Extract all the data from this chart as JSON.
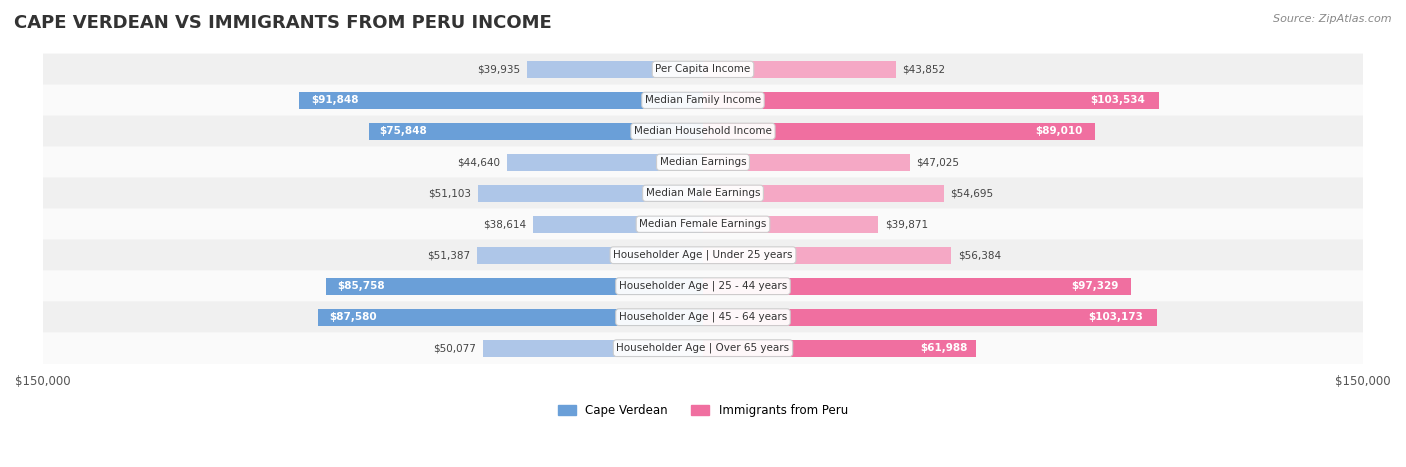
{
  "title": "CAPE VERDEAN VS IMMIGRANTS FROM PERU INCOME",
  "source": "Source: ZipAtlas.com",
  "categories": [
    "Per Capita Income",
    "Median Family Income",
    "Median Household Income",
    "Median Earnings",
    "Median Male Earnings",
    "Median Female Earnings",
    "Householder Age | Under 25 years",
    "Householder Age | 25 - 44 years",
    "Householder Age | 45 - 64 years",
    "Householder Age | Over 65 years"
  ],
  "cape_verdean": [
    39935,
    91848,
    75848,
    44640,
    51103,
    38614,
    51387,
    85758,
    87580,
    50077
  ],
  "peru": [
    43852,
    103534,
    89010,
    47025,
    54695,
    39871,
    56384,
    97329,
    103173,
    61988
  ],
  "cape_verdean_labels": [
    "$39,935",
    "$91,848",
    "$75,848",
    "$44,640",
    "$51,103",
    "$38,614",
    "$51,387",
    "$85,758",
    "$87,580",
    "$50,077"
  ],
  "peru_labels": [
    "$43,852",
    "$103,534",
    "$89,010",
    "$47,025",
    "$54,695",
    "$39,871",
    "$56,384",
    "$97,329",
    "$103,173",
    "$61,988"
  ],
  "max_value": 150000,
  "color_cape_verdean_dark": "#6a9fd8",
  "color_cape_verdean_light": "#aec6e8",
  "color_peru_dark": "#f06fa0",
  "color_peru_light": "#f5a8c5",
  "color_row_bg": "#f0f0f0",
  "color_row_bg_alt": "#fafafa",
  "label_color_dark": "#ffffff",
  "label_color_light": "#555555",
  "bar_height": 0.55,
  "dark_threshold": 60000
}
